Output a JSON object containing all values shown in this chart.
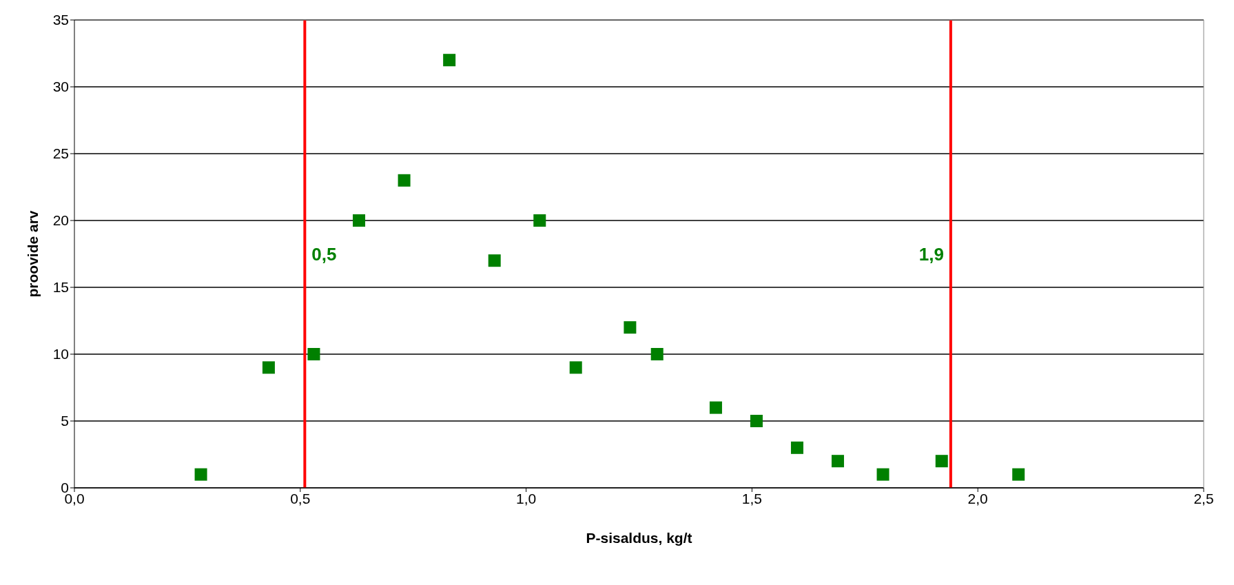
{
  "chart_data": {
    "type": "scatter",
    "xlabel": "P-sisaldus, kg/t",
    "ylabel": "proovide arv",
    "x": [
      0.28,
      0.43,
      0.53,
      0.63,
      0.73,
      0.83,
      0.93,
      1.03,
      1.11,
      1.23,
      1.29,
      1.42,
      1.51,
      1.6,
      1.69,
      1.79,
      1.92,
      2.09
    ],
    "series": [
      {
        "color": "#008000",
        "values": [
          1,
          9,
          10,
          20,
          23,
          32,
          17,
          20,
          9,
          12,
          10,
          6,
          5,
          3,
          2,
          1,
          2,
          1
        ]
      }
    ],
    "xlim": [
      0,
      2.5
    ],
    "xticks": [
      {
        "value": 0,
        "label": "0,0"
      },
      {
        "value": 0.5,
        "label": "0,5"
      },
      {
        "value": 1,
        "label": "1,0"
      },
      {
        "value": 1.5,
        "label": "1,5"
      },
      {
        "value": 2,
        "label": "2,0"
      },
      {
        "value": 2.5,
        "label": "2,5"
      }
    ],
    "ylim": [
      0,
      35
    ],
    "yticks": [
      0,
      5,
      10,
      15,
      20,
      25,
      30,
      35
    ],
    "ref_lines": [
      {
        "axis": "x",
        "value": 0.51,
        "color": "#ff0000",
        "label": "0,5"
      },
      {
        "axis": "x",
        "value": 1.94,
        "color": "#ff0000",
        "label": "1,9"
      }
    ],
    "grid": "y",
    "marker": "square",
    "legend": false
  }
}
